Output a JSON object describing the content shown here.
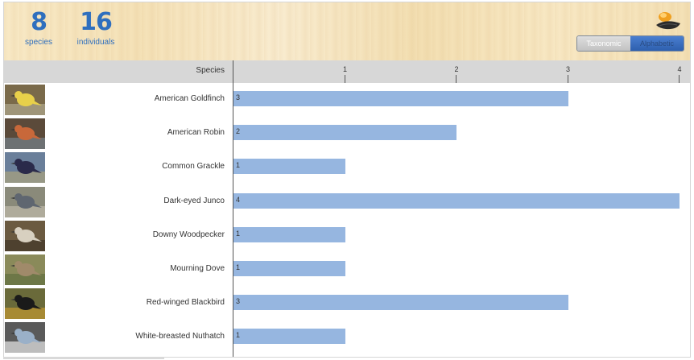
{
  "summary": {
    "species_count": "8",
    "species_label": "species",
    "individuals_count": "16",
    "individuals_label": "individuals"
  },
  "sort_toggle": {
    "options": [
      "Taxonomic",
      "Alphabetic"
    ],
    "selected": "Alphabetic"
  },
  "table": {
    "column_header": "Species"
  },
  "chart_data": {
    "type": "bar",
    "orientation": "horizontal",
    "categories": [
      "American Goldfinch",
      "American Robin",
      "Common Grackle",
      "Dark-eyed Junco",
      "Downy Woodpecker",
      "Mourning Dove",
      "Red-winged Blackbird",
      "White-breasted Nuthatch"
    ],
    "values": [
      3,
      2,
      1,
      4,
      1,
      1,
      3,
      1
    ],
    "xticks": [
      "1",
      "2",
      "3",
      "4"
    ],
    "xlim": [
      0,
      4
    ],
    "bar_color": "#96b6e0"
  },
  "colors": {
    "accent": "#2f6fbe",
    "bar": "#96b6e0"
  }
}
